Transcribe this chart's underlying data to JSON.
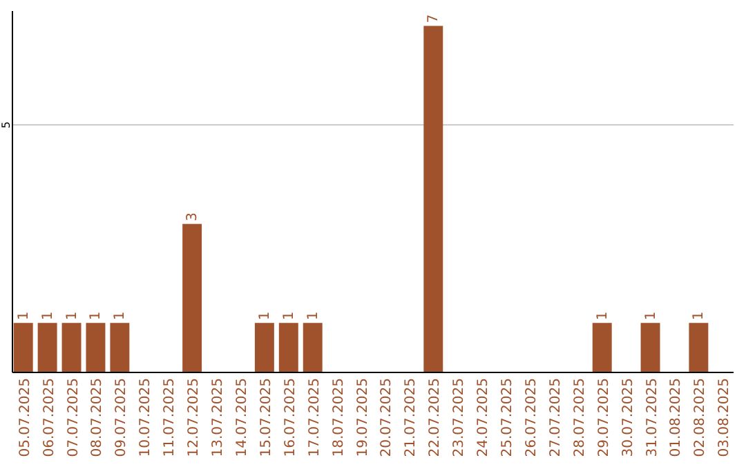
{
  "chart_data": {
    "type": "bar",
    "categories": [
      "05.07.2025",
      "06.07.2025",
      "07.07.2025",
      "08.07.2025",
      "09.07.2025",
      "10.07.2025",
      "11.07.2025",
      "12.07.2025",
      "13.07.2025",
      "14.07.2025",
      "15.07.2025",
      "16.07.2025",
      "17.07.2025",
      "18.07.2025",
      "19.07.2025",
      "20.07.2025",
      "21.07.2025",
      "22.07.2025",
      "23.07.2025",
      "24.07.2025",
      "25.07.2025",
      "26.07.2025",
      "27.07.2025",
      "28.07.2025",
      "29.07.2025",
      "30.07.2025",
      "31.07.2025",
      "01.08.2025",
      "02.08.2025",
      "03.08.2025"
    ],
    "values": [
      1,
      1,
      1,
      1,
      1,
      null,
      null,
      3,
      null,
      null,
      1,
      1,
      1,
      null,
      null,
      null,
      null,
      7,
      null,
      null,
      null,
      null,
      null,
      null,
      1,
      null,
      1,
      null,
      1,
      null
    ],
    "color": "#a0522d",
    "ylim": [
      0,
      7.3
    ],
    "yticks": [
      5
    ],
    "grid": "y",
    "data_labels": true
  }
}
